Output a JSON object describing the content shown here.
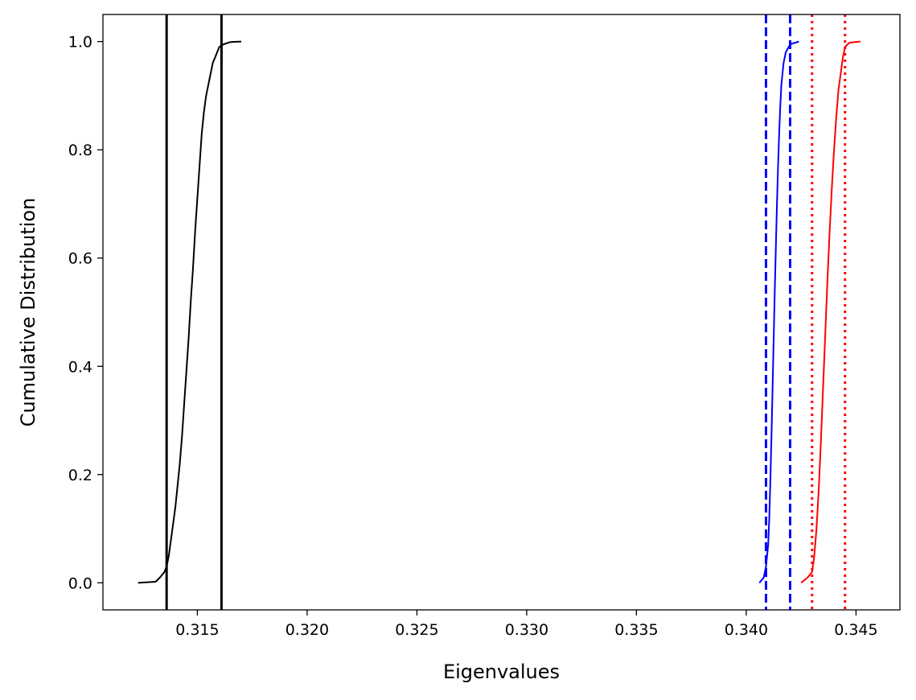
{
  "chart_data": {
    "type": "line",
    "title": "",
    "xlabel": "Eigenvalues",
    "ylabel": "Cumulative Distribution",
    "xlim": [
      0.3107,
      0.347
    ],
    "ylim": [
      -0.05,
      1.05
    ],
    "xticks": [
      0.315,
      0.32,
      0.325,
      0.33,
      0.335,
      0.34,
      0.345
    ],
    "xtick_labels": [
      "0.315",
      "0.320",
      "0.325",
      "0.330",
      "0.335",
      "0.340",
      "0.345"
    ],
    "yticks": [
      0.0,
      0.2,
      0.4,
      0.6,
      0.8,
      1.0
    ],
    "ytick_labels": [
      "0.0",
      "0.2",
      "0.4",
      "0.6",
      "0.8",
      "1.0"
    ],
    "grid": false,
    "legend": "none",
    "series": [
      {
        "color": "#000000",
        "x": [
          0.3123,
          0.3131,
          0.3133,
          0.3135,
          0.3136,
          0.3137,
          0.3138,
          0.3139,
          0.314,
          0.3141,
          0.3142,
          0.3143,
          0.3144,
          0.3145,
          0.3146,
          0.3147,
          0.3148,
          0.3149,
          0.315,
          0.3151,
          0.3152,
          0.3153,
          0.3154,
          0.3155,
          0.3156,
          0.3157,
          0.3158,
          0.3159,
          0.316,
          0.3162,
          0.3165,
          0.317
        ],
        "y": [
          0.0,
          0.002,
          0.01,
          0.02,
          0.03,
          0.05,
          0.08,
          0.11,
          0.14,
          0.18,
          0.22,
          0.27,
          0.33,
          0.39,
          0.45,
          0.52,
          0.58,
          0.65,
          0.71,
          0.77,
          0.83,
          0.87,
          0.9,
          0.92,
          0.94,
          0.96,
          0.97,
          0.98,
          0.99,
          0.995,
          0.999,
          1.0
        ]
      },
      {
        "color": "#0000ff",
        "x": [
          0.3406,
          0.3408,
          0.3409,
          0.341,
          0.34105,
          0.3411,
          0.34115,
          0.3412,
          0.34125,
          0.3413,
          0.34135,
          0.3414,
          0.34145,
          0.3415,
          0.34155,
          0.3416,
          0.3417,
          0.3418,
          0.342,
          0.3424
        ],
        "y": [
          0.0,
          0.01,
          0.03,
          0.07,
          0.12,
          0.19,
          0.27,
          0.36,
          0.45,
          0.54,
          0.62,
          0.7,
          0.77,
          0.83,
          0.88,
          0.92,
          0.96,
          0.98,
          0.995,
          1.0
        ]
      },
      {
        "color": "#ff0000",
        "x": [
          0.3425,
          0.3428,
          0.343,
          0.3431,
          0.3432,
          0.3433,
          0.3434,
          0.3435,
          0.3436,
          0.3437,
          0.3438,
          0.3439,
          0.344,
          0.3441,
          0.3442,
          0.3443,
          0.3444,
          0.3445,
          0.3447,
          0.3452
        ],
        "y": [
          0.0,
          0.01,
          0.02,
          0.05,
          0.1,
          0.17,
          0.26,
          0.36,
          0.46,
          0.56,
          0.65,
          0.73,
          0.8,
          0.86,
          0.91,
          0.94,
          0.97,
          0.99,
          0.998,
          1.0
        ]
      }
    ],
    "vlines": [
      {
        "x": 0.3136,
        "color": "#000000",
        "style": "solid"
      },
      {
        "x": 0.3161,
        "color": "#000000",
        "style": "solid"
      },
      {
        "x": 0.3409,
        "color": "#0000ff",
        "style": "dashed"
      },
      {
        "x": 0.342,
        "color": "#0000ff",
        "style": "dashed"
      },
      {
        "x": 0.343,
        "color": "#ff0000",
        "style": "dotted"
      },
      {
        "x": 0.3445,
        "color": "#ff0000",
        "style": "dotted"
      }
    ]
  }
}
